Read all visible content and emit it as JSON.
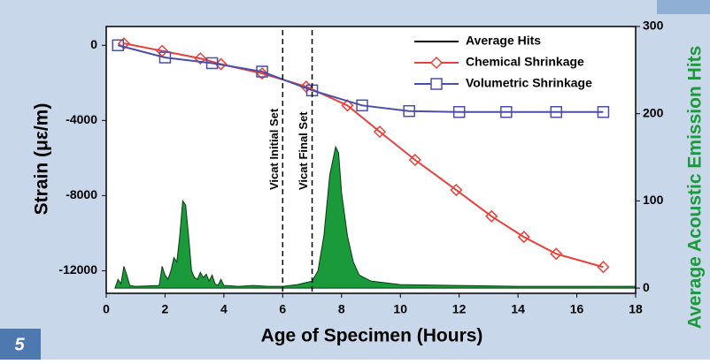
{
  "chart_data": {
    "type": "line",
    "xlabel": "Age of Specimen (Hours)",
    "ylabel": "Strain (με/m)",
    "y2label": "Average Acoustic Emission Hits",
    "panel_label": "5",
    "xlim": [
      0,
      18
    ],
    "xticks": [
      0,
      2,
      4,
      6,
      8,
      10,
      12,
      14,
      16,
      18
    ],
    "ylim": [
      -13200,
      1000
    ],
    "yticks": [
      -12000,
      -8000,
      -4000,
      0
    ],
    "y2lim": [
      -6,
      300
    ],
    "y2ticks": [
      0,
      100,
      200,
      300
    ],
    "legend": "upper right",
    "vlines": [
      {
        "x": 6,
        "label": "Vicat Initial Set"
      },
      {
        "x": 7,
        "label": "Vicat Final Set"
      }
    ],
    "series": [
      {
        "name": "Average Hits",
        "type": "area",
        "axis": "y2",
        "color": "#1a9a3a",
        "x": [
          0.3,
          0.4,
          0.5,
          0.6,
          0.7,
          0.8,
          1.0,
          1.8,
          1.9,
          2.0,
          2.1,
          2.2,
          2.3,
          2.4,
          2.5,
          2.6,
          2.7,
          2.8,
          2.9,
          3.0,
          3.1,
          3.2,
          3.3,
          3.4,
          3.5,
          3.6,
          3.7,
          3.8,
          3.9,
          4.0,
          4.5,
          5.0,
          5.5,
          6.0,
          6.5,
          7.0,
          7.2,
          7.4,
          7.6,
          7.8,
          7.9,
          8.0,
          8.2,
          8.4,
          8.6,
          9.0,
          10.0,
          12.0,
          14.0,
          16.0,
          18.0
        ],
        "values": [
          0,
          10,
          5,
          25,
          15,
          3,
          2,
          3,
          25,
          15,
          10,
          20,
          35,
          30,
          60,
          100,
          95,
          60,
          20,
          12,
          10,
          18,
          12,
          16,
          8,
          15,
          5,
          3,
          10,
          3,
          2,
          3,
          2,
          2,
          4,
          8,
          20,
          60,
          130,
          162,
          155,
          110,
          60,
          30,
          15,
          8,
          4,
          3,
          2,
          2,
          2
        ]
      },
      {
        "name": "Chemical Shrinkage",
        "type": "line",
        "marker": "diamond",
        "color": "#e8413a",
        "x": [
          0.6,
          1.9,
          3.2,
          3.9,
          5.3,
          6.8,
          8.2,
          9.3,
          10.5,
          11.9,
          13.1,
          14.2,
          15.3,
          16.9
        ],
        "values": [
          100,
          -300,
          -700,
          -1000,
          -1500,
          -2200,
          -3200,
          -4600,
          -6100,
          -7700,
          -9100,
          -10200,
          -11100,
          -11800
        ]
      },
      {
        "name": "Volumetric Shrinkage",
        "type": "line",
        "marker": "square",
        "color": "#4a4ea8",
        "x": [
          0.4,
          2.0,
          3.6,
          5.3,
          7.0,
          8.7,
          10.3,
          12.0,
          13.6,
          15.3,
          16.9
        ],
        "values": [
          0,
          -650,
          -950,
          -1400,
          -2400,
          -3200,
          -3500,
          -3550,
          -3550,
          -3550,
          -3550
        ]
      }
    ]
  }
}
